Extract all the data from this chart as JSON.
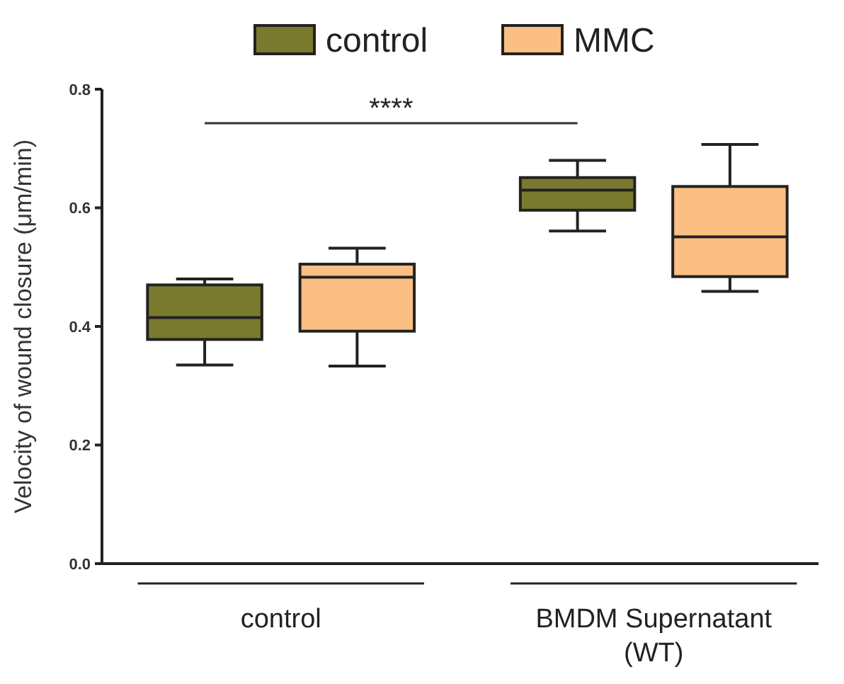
{
  "chart_data": {
    "type": "box",
    "ylabel": "Velocity of wound closure (μm/min)",
    "categories": [
      "control",
      "BMDM Supernatant (WT)"
    ],
    "ylim": [
      0,
      0.8
    ],
    "yticks": [
      {
        "value": 0,
        "label": "0.0"
      },
      {
        "value": 0.2,
        "label": "0.2"
      },
      {
        "value": 0.4,
        "label": "0.4"
      },
      {
        "value": 0.6,
        "label": "0.6"
      },
      {
        "value": 0.8,
        "label": "0.8"
      }
    ],
    "legend": "top",
    "grid": false,
    "series": [
      {
        "name": "control",
        "color": "#7a7a2e",
        "boxes": [
          {
            "low": 0.335,
            "q1": 0.378,
            "median": 0.415,
            "q3": 0.47,
            "high": 0.48
          },
          {
            "low": 0.561,
            "q1": 0.596,
            "median": 0.63,
            "q3": 0.651,
            "high": 0.68
          }
        ]
      },
      {
        "name": "MMC",
        "color": "#fbbf83",
        "boxes": [
          {
            "low": 0.333,
            "q1": 0.392,
            "median": 0.483,
            "q3": 0.505,
            "high": 0.532
          },
          {
            "low": 0.459,
            "q1": 0.484,
            "median": 0.551,
            "q3": 0.636,
            "high": 0.707
          }
        ]
      }
    ],
    "annotations": [
      "****"
    ]
  }
}
